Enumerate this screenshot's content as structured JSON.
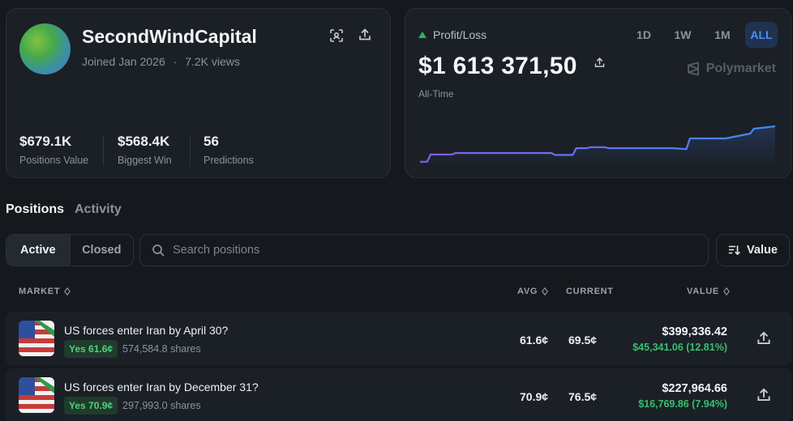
{
  "profile": {
    "username": "SecondWindCapital",
    "joined": "Joined Jan 2026",
    "views": "7.2K views",
    "stats": [
      {
        "value": "$679.1K",
        "label": "Positions Value"
      },
      {
        "value": "$568.4K",
        "label": "Biggest Win"
      },
      {
        "value": "56",
        "label": "Predictions"
      }
    ]
  },
  "pnl": {
    "label": "Profit/Loss",
    "value": "$1 613 371,50",
    "period": "All-Time",
    "brand": "Polymarket",
    "ranges": [
      "1D",
      "1W",
      "1M",
      "ALL"
    ],
    "active_range": "ALL"
  },
  "chart_data": {
    "type": "line",
    "title": "Profit/Loss",
    "period": "All-Time",
    "x": [
      0,
      2,
      3,
      5,
      9,
      10,
      37,
      38,
      43,
      44,
      47,
      48,
      52,
      53,
      70,
      71,
      75,
      76,
      85,
      86,
      93,
      94,
      100
    ],
    "y": [
      0.02,
      0.02,
      0.17,
      0.17,
      0.17,
      0.2,
      0.2,
      0.16,
      0.16,
      0.3,
      0.3,
      0.32,
      0.32,
      0.3,
      0.3,
      0.3,
      0.28,
      0.5,
      0.5,
      0.5,
      0.6,
      0.7,
      0.75
    ],
    "ylim": [
      0,
      1
    ],
    "xlabel": "",
    "ylabel": "",
    "grid": false
  },
  "tabs": {
    "positions": "Positions",
    "activity": "Activity"
  },
  "filters": {
    "active": "Active",
    "closed": "Closed"
  },
  "search": {
    "placeholder": "Search positions"
  },
  "sort": {
    "label": "Value"
  },
  "table": {
    "headers": {
      "market": "MARKET",
      "avg": "AVG",
      "current": "CURRENT",
      "value": "VALUE"
    },
    "rows": [
      {
        "market": "US forces enter Iran by April 30?",
        "outcome": "Yes 61.6¢",
        "shares": "574,584.8 shares",
        "avg": "61.6¢",
        "current": "69.5¢",
        "value": "$399,336.42",
        "pnl": "$45,341.06 (12.81%)"
      },
      {
        "market": "US forces enter Iran by December 31?",
        "outcome": "Yes 70.9¢",
        "shares": "297,993.0 shares",
        "avg": "70.9¢",
        "current": "76.5¢",
        "value": "$227,964.66",
        "pnl": "$16,769.86 (7.94%)"
      }
    ]
  },
  "colors": {
    "accent": "#4c8ef0",
    "positive": "#33c26c",
    "line_start": "#8a5cf0",
    "line_end": "#3d8bf5"
  }
}
